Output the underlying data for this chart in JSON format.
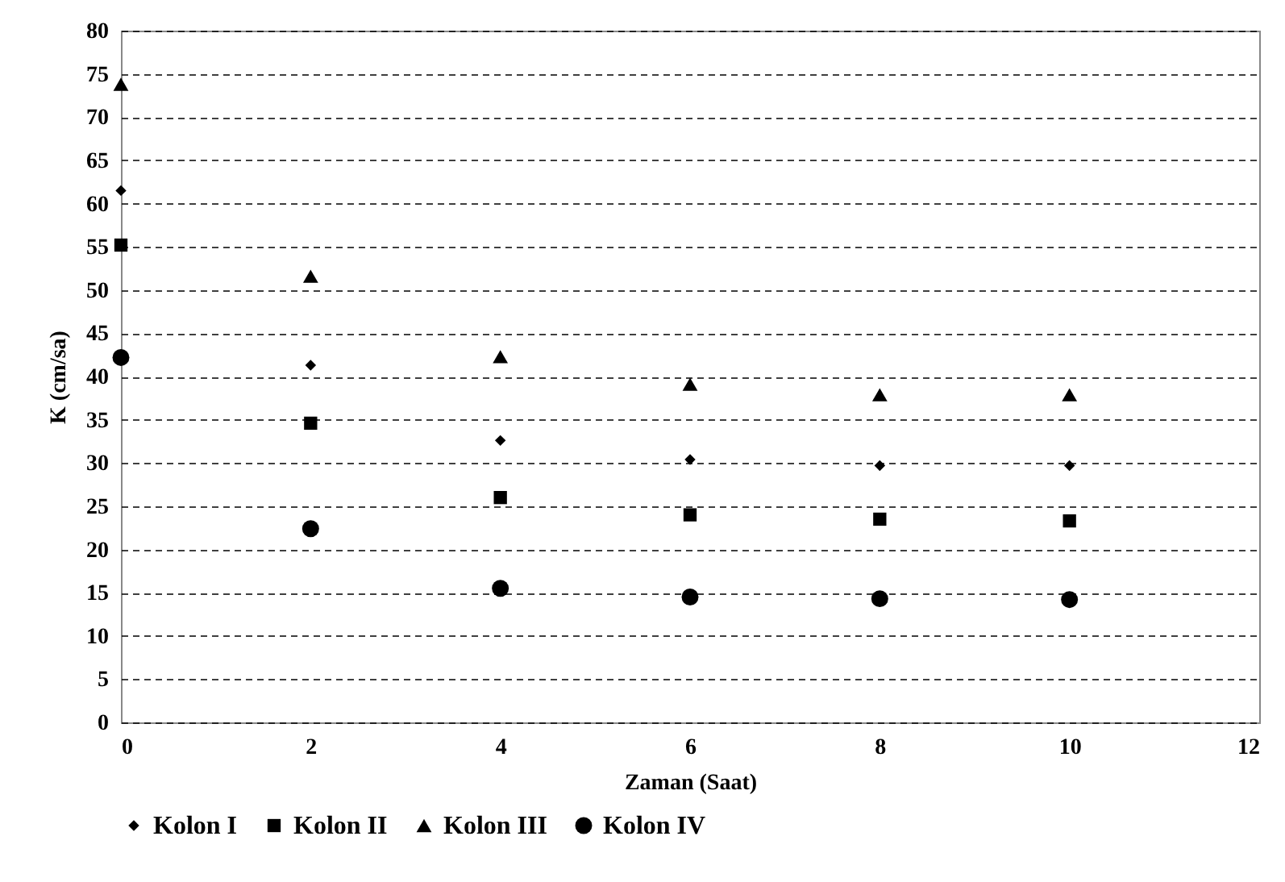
{
  "chart_data": {
    "type": "scatter",
    "xlabel": "Zaman (Saat)",
    "ylabel": "K (cm/sa)",
    "x": [
      0,
      2,
      4,
      6,
      8,
      10
    ],
    "xlim": [
      0,
      12
    ],
    "xticks": [
      0,
      2,
      4,
      6,
      8,
      10,
      12
    ],
    "ylim": [
      0,
      80
    ],
    "yticks": [
      0,
      5,
      10,
      15,
      20,
      25,
      30,
      35,
      40,
      45,
      50,
      55,
      60,
      65,
      70,
      75,
      80
    ],
    "grid": "y",
    "legend": "bottom",
    "series": [
      {
        "name": "Kolon I",
        "color": "#000000",
        "marker": "diamond",
        "values": [
          61.5,
          41.3,
          32.6,
          30.4,
          29.7,
          29.7
        ]
      },
      {
        "name": "Kolon II",
        "color": "#000000",
        "marker": "square",
        "values": [
          55.2,
          34.6,
          26.0,
          24.0,
          23.5,
          23.3
        ]
      },
      {
        "name": "Kolon III",
        "color": "#000000",
        "marker": "triangle",
        "values": [
          73.8,
          51.6,
          42.3,
          39.1,
          37.9,
          37.9
        ]
      },
      {
        "name": "Kolon IV",
        "color": "#000000",
        "marker": "circle",
        "values": [
          42.2,
          22.4,
          15.5,
          14.5,
          14.3,
          14.2
        ]
      }
    ]
  }
}
